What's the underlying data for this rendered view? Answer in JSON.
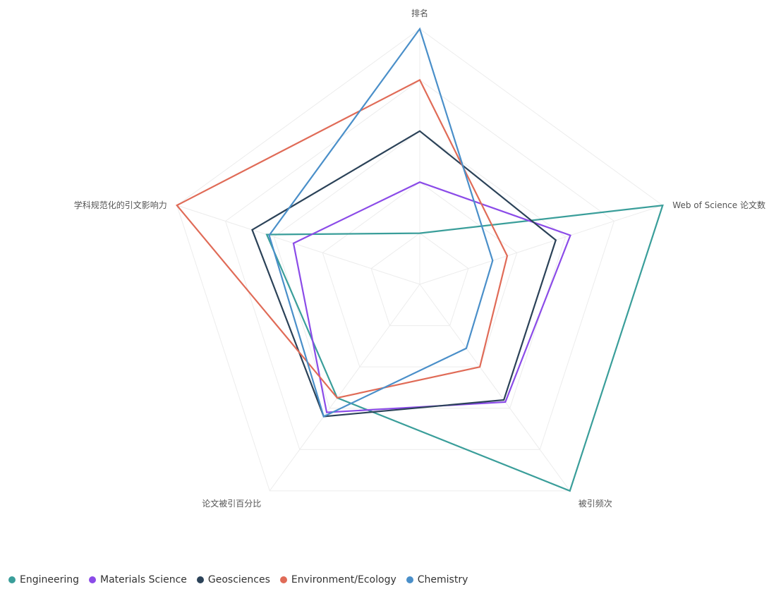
{
  "chart_data": {
    "type": "radar",
    "title": "",
    "axes": [
      "排名",
      "Web of Science 论文数",
      "被引频次",
      "论文被引百分比",
      "学科规范化的引文影响力"
    ],
    "max": 100,
    "grid": true,
    "legend_position": "bottom-left",
    "series": [
      {
        "name": "Engineering",
        "color": "#3a9e9a",
        "values": [
          20,
          100,
          100,
          55,
          63
        ]
      },
      {
        "name": "Materials Science",
        "color": "#8b4be8",
        "values": [
          40,
          62,
          57,
          62,
          52
        ]
      },
      {
        "name": "Geosciences",
        "color": "#2b4258",
        "values": [
          60,
          56,
          56,
          64,
          69
        ]
      },
      {
        "name": "Environment/Ecology",
        "color": "#e06b57",
        "values": [
          80,
          36,
          40,
          55,
          100
        ]
      },
      {
        "name": "Chemistry",
        "color": "#4a8fc9",
        "values": [
          100,
          30,
          31,
          64,
          62
        ]
      }
    ]
  }
}
